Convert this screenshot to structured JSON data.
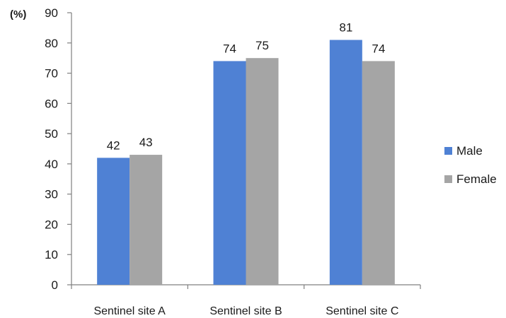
{
  "chart_data": {
    "type": "bar",
    "unit_label": "(%)",
    "categories": [
      "Sentinel site A",
      "Sentinel site B",
      "Sentinel site C"
    ],
    "series": [
      {
        "name": "Male",
        "values": [
          42,
          74,
          81
        ],
        "color": "#4f81d4"
      },
      {
        "name": "Female",
        "values": [
          43,
          75,
          74
        ],
        "color": "#a5a5a5"
      }
    ],
    "ylim": [
      0,
      90
    ],
    "yticks": [
      0,
      10,
      20,
      30,
      40,
      50,
      60,
      70,
      80,
      90
    ],
    "grid": false,
    "legend_position": "right"
  }
}
